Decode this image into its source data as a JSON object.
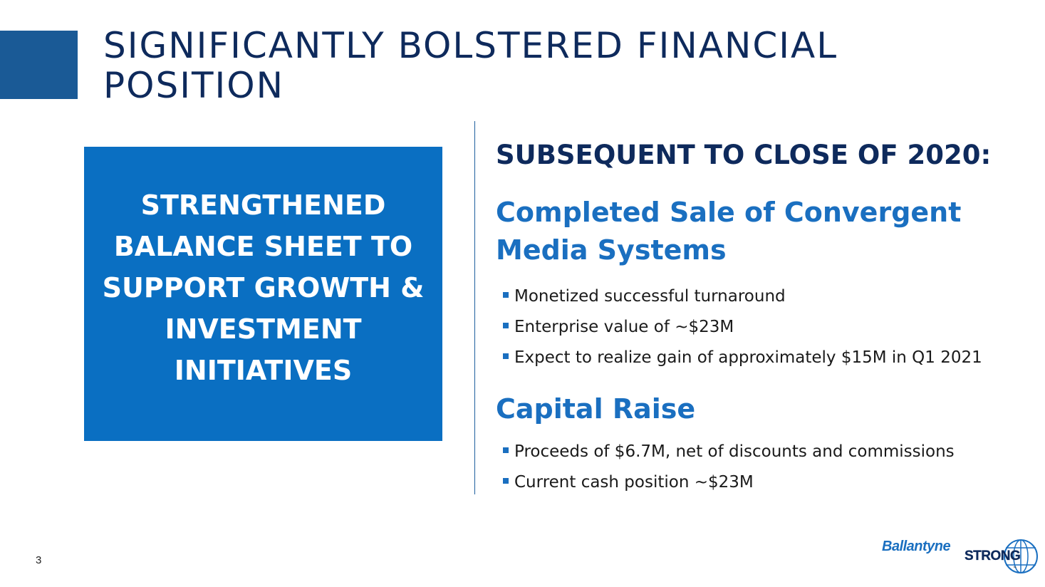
{
  "slide": {
    "title": "SIGNIFICANTLY BOLSTERED FINANCIAL POSITION",
    "page_number": "3"
  },
  "callout": {
    "text": "STRENGTHENED BALANCE SHEET TO SUPPORT GROWTH & INVESTMENT INITIATIVES"
  },
  "right": {
    "heading": "SUBSEQUENT TO CLOSE OF 2020:",
    "section1": {
      "title": "Completed Sale of Convergent Media Systems",
      "bullets": [
        "Monetized successful turnaround",
        "Enterprise value of ~$23M",
        "Expect to realize gain of approximately $15M in Q1 2021"
      ]
    },
    "section2": {
      "title": "Capital Raise",
      "bullets": [
        "Proceeds of $6.7M, net of discounts and commissions",
        "Current cash position ~$23M"
      ]
    }
  },
  "logo": {
    "word1": "Ballantyne",
    "word2": "STRONG",
    "tm": "™",
    "icon": "globe-icon"
  },
  "colors": {
    "title_navy": "#0e2a5c",
    "accent_blue": "#1a6fc0",
    "callout_blue": "#0a6fc2",
    "accent_block": "#1a5a96"
  }
}
